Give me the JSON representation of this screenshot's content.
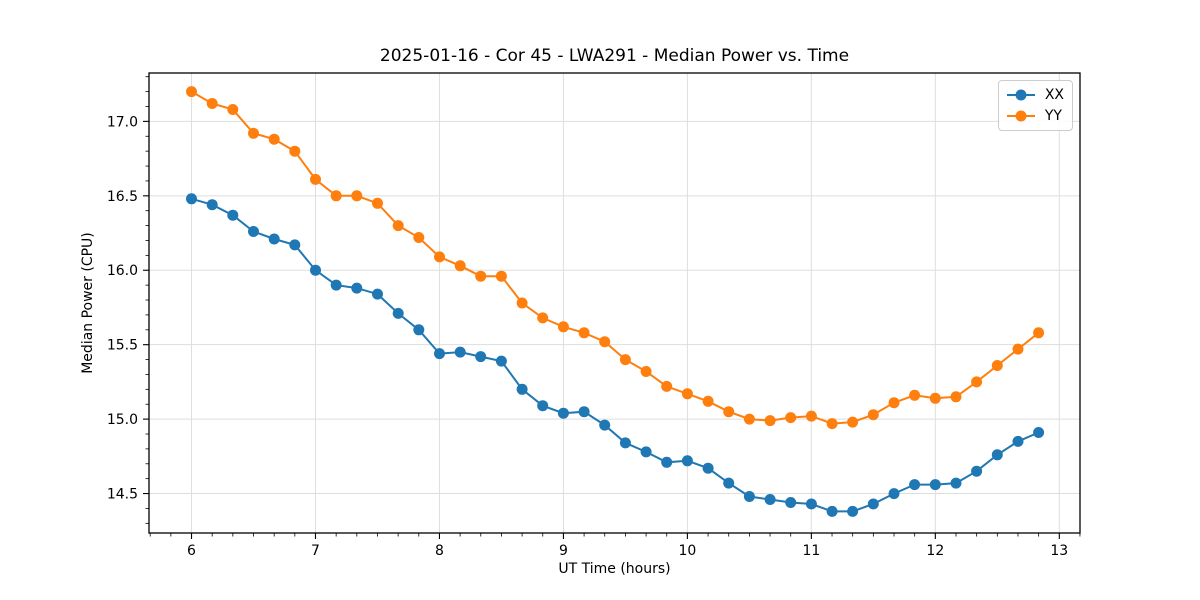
{
  "chart_data": {
    "type": "line",
    "title": "2025-01-16 - Cor 45 - LWA291 - Median Power vs. Time",
    "xlabel": "UT Time (hours)",
    "ylabel": "Median Power (CPU)",
    "xlim": [
      5.657,
      13.167
    ],
    "ylim": [
      14.235,
      17.325
    ],
    "xticks": [
      6,
      7,
      8,
      9,
      10,
      11,
      12,
      13
    ],
    "xtick_labels": [
      "6",
      "7",
      "8",
      "9",
      "10",
      "11",
      "12",
      "13"
    ],
    "yticks": [
      14.5,
      15.0,
      15.5,
      16.0,
      16.5,
      17.0
    ],
    "ytick_labels": [
      "14.5",
      "15.0",
      "15.5",
      "16.0",
      "16.5",
      "17.0"
    ],
    "minor_x_step": 0.166667,
    "minor_y_step": 0.1,
    "grid": true,
    "grid_color": "#dedede",
    "axis_color": "#000000",
    "legend_position": "upper right",
    "marker": "circle",
    "marker_radius": 5.5,
    "line_width": 2,
    "x": [
      6.0,
      6.167,
      6.333,
      6.5,
      6.667,
      6.833,
      7.0,
      7.167,
      7.333,
      7.5,
      7.667,
      7.833,
      8.0,
      8.167,
      8.333,
      8.5,
      8.667,
      8.833,
      9.0,
      9.167,
      9.333,
      9.5,
      9.667,
      9.833,
      10.0,
      10.167,
      10.333,
      10.5,
      10.667,
      10.833,
      11.0,
      11.167,
      11.333,
      11.5,
      11.667,
      11.833,
      12.0,
      12.167,
      12.333,
      12.5,
      12.667,
      12.833
    ],
    "series": [
      {
        "name": "XX",
        "color": "#1f77b4",
        "values": [
          16.48,
          16.44,
          16.37,
          16.26,
          16.21,
          16.17,
          16.0,
          15.9,
          15.88,
          15.84,
          15.71,
          15.6,
          15.44,
          15.45,
          15.42,
          15.39,
          15.2,
          15.09,
          15.04,
          15.05,
          14.96,
          14.84,
          14.78,
          14.71,
          14.72,
          14.67,
          14.57,
          14.48,
          14.46,
          14.44,
          14.43,
          14.38,
          14.38,
          14.43,
          14.5,
          14.56,
          14.56,
          14.57,
          14.65,
          14.76,
          14.85,
          14.91
        ]
      },
      {
        "name": "YY",
        "color": "#ff7f0e",
        "values": [
          17.2,
          17.12,
          17.08,
          16.92,
          16.88,
          16.8,
          16.61,
          16.5,
          16.5,
          16.45,
          16.3,
          16.22,
          16.09,
          16.03,
          15.96,
          15.96,
          15.78,
          15.68,
          15.62,
          15.58,
          15.52,
          15.4,
          15.32,
          15.22,
          15.17,
          15.12,
          15.05,
          15.0,
          14.99,
          15.01,
          15.02,
          14.97,
          14.98,
          15.03,
          15.11,
          15.16,
          15.14,
          15.15,
          15.25,
          15.36,
          15.47,
          15.58
        ]
      }
    ]
  }
}
